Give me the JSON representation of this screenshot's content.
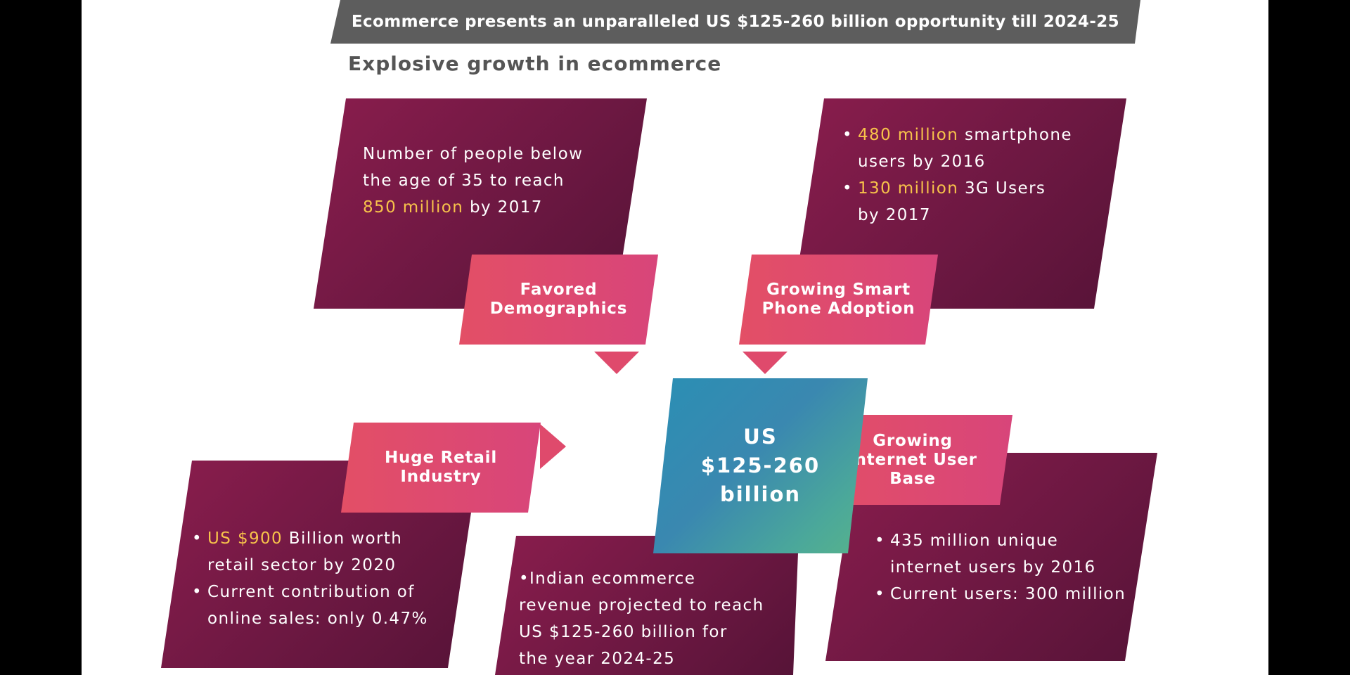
{
  "banner": "Ecommerce presents an unparalleled US $125-260 billion opportunity till 2024-25",
  "subtitle": "Explosive growth in ecommerce",
  "center": {
    "line1": "US",
    "line2": "$125-260",
    "line3": "billion"
  },
  "demographics": {
    "label_line1": "Favored",
    "label_line2": "Demographics",
    "text_line1": "Number of people below",
    "text_line2": "the age of 35 to reach",
    "highlight": "850 million",
    "text_line3_rest": " by 2017"
  },
  "smartphone": {
    "label_line1": "Growing Smart",
    "label_line2": "Phone Adoption",
    "bullet1_highlight": "480 million",
    "bullet1_rest": " smartphone",
    "bullet1_line2": "users by 2016",
    "bullet2_highlight": "130 million",
    "bullet2_rest": " 3G Users",
    "bullet2_line2": "by 2017"
  },
  "retail": {
    "label_line1": "Huge Retail",
    "label_line2": "Industry",
    "bullet1_highlight": "US $900",
    "bullet1_rest": " Billion worth",
    "bullet1_line2": "retail sector by 2020",
    "bullet2_line1": "Current contribution of",
    "bullet2_line2": "online sales: only 0.47%"
  },
  "internet": {
    "label_line1": "Growing",
    "label_line2": "Internet User",
    "label_line3": "Base",
    "bullet1_line1": "435 million unique",
    "bullet1_line2": "internet users by 2016",
    "bullet2_line1": "Current users: 300 million"
  },
  "revenue": {
    "line1": "•Indian ecommerce",
    "line2": "revenue projected to reach",
    "line3": "US $125-260 billion for",
    "line4": "the year 2024-25"
  },
  "colors": {
    "panel": "#6d1842",
    "label": "#e0496e",
    "highlight": "#f7c24a",
    "center": "#3a88b0",
    "banner": "#5d5d5d"
  }
}
